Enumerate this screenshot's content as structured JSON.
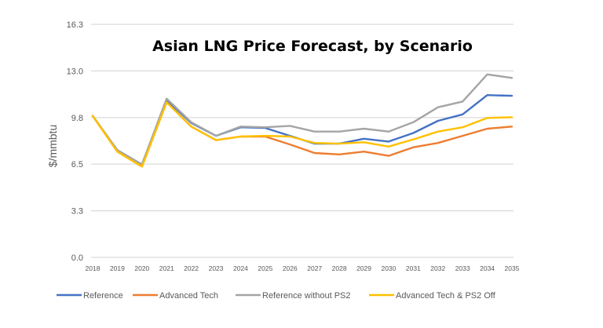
{
  "chart_data": {
    "type": "line",
    "title": "Asian LNG Price Forecast, by Scenario",
    "xlabel": "",
    "ylabel": "$/mmbtu",
    "ylim": [
      0,
      16.3
    ],
    "yticks": [
      "0.0",
      "3.3",
      "6.5",
      "9.8",
      "13.0",
      "16.3"
    ],
    "ytick_values": [
      0,
      3.26,
      6.52,
      9.78,
      13.04,
      16.3
    ],
    "grid": true,
    "legend_position": "bottom",
    "x": [
      "2018",
      "2019",
      "2020",
      "2021",
      "2022",
      "2023",
      "2024",
      "2025",
      "2026",
      "2027",
      "2028",
      "2029",
      "2030",
      "2031",
      "2032",
      "2033",
      "2034",
      "2035"
    ],
    "series": [
      {
        "name": "Reference",
        "color": "#4472C4",
        "values": [
          9.9,
          7.5,
          6.5,
          11.0,
          9.4,
          8.5,
          9.1,
          9.05,
          8.5,
          7.95,
          7.95,
          8.3,
          8.1,
          8.7,
          9.55,
          10.0,
          11.35,
          11.3
        ]
      },
      {
        "name": "Advanced Tech",
        "color": "#ED7D31",
        "values": [
          9.9,
          7.4,
          6.35,
          10.85,
          9.15,
          8.2,
          8.45,
          8.45,
          7.9,
          7.3,
          7.2,
          7.4,
          7.1,
          7.7,
          8.0,
          8.5,
          9.0,
          9.15
        ]
      },
      {
        "name": "Reference without PS2",
        "color": "#A5A5A5",
        "values": [
          9.9,
          7.5,
          6.5,
          11.1,
          9.45,
          8.5,
          9.15,
          9.1,
          9.2,
          8.8,
          8.8,
          9.0,
          8.8,
          9.45,
          10.5,
          10.9,
          12.8,
          12.55
        ]
      },
      {
        "name": "Advanced Tech & PS2 Off",
        "color": "#FFC000",
        "values": [
          9.9,
          7.4,
          6.35,
          10.85,
          9.15,
          8.2,
          8.45,
          8.5,
          8.45,
          8.0,
          7.95,
          8.05,
          7.75,
          8.25,
          8.8,
          9.1,
          9.75,
          9.8
        ]
      }
    ]
  }
}
